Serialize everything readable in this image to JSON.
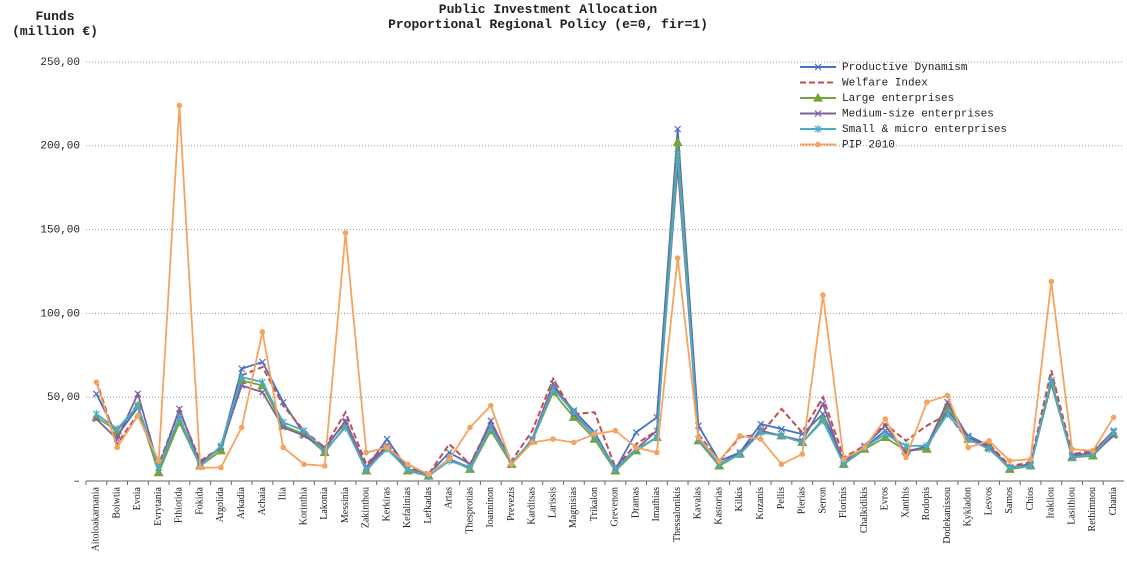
{
  "chart_data": {
    "type": "line",
    "title": "Public Investment Allocation",
    "subtitle": "Proportional Regional Policy (e=0, fir=1)",
    "ylabel": [
      "Funds",
      "(million €)"
    ],
    "categories": [
      "Aitoloakarnania",
      "Boiwtia",
      "Evoia",
      "Evrytania",
      "Fthiotida",
      "Fokida",
      "Argolida",
      "Arkadia",
      "Achaia",
      "Ilia",
      "Korinthia",
      "Lakonia",
      "Messinia",
      "Zakinthou",
      "Kerkiras",
      "Kefalinias",
      "Lefkadas",
      "Artas",
      "Thesprotias",
      "Ioanninon",
      "Prevezis",
      "Karditsas",
      "Larissis",
      "Magnisias",
      "Trikalon",
      "Grevenon",
      "Dramas",
      "Imathias",
      "Thessalonikis",
      "Kavalas",
      "Kastorias",
      "Kilkis",
      "Kozanis",
      "Pellis",
      "Pierias",
      "Serron",
      "Florinis",
      "Chalkidikis",
      "Evros",
      "Xanthis",
      "Rodopis",
      "Dodekanissou",
      "Kykladon",
      "Lesvos",
      "Samos",
      "Chios",
      "Irakliou",
      "Lasithiou",
      "Rethimnou",
      "Chania"
    ],
    "series": [
      {
        "name": "Productive Dynamism",
        "color": "#4472c4",
        "marker": "x",
        "dashed": false,
        "values": [
          52,
          27,
          44,
          5,
          37,
          11,
          20,
          67,
          71,
          47,
          28,
          20,
          35,
          8,
          25,
          7,
          4,
          17,
          10,
          33,
          11,
          24,
          56,
          42,
          29,
          7,
          29,
          38,
          210,
          33,
          12,
          17,
          34,
          31,
          28,
          40,
          12,
          20,
          30,
          18,
          20,
          42,
          27,
          21,
          8,
          10,
          60,
          15,
          17,
          30
        ]
      },
      {
        "name": "Welfare Index",
        "color": "#c0504d",
        "marker": "none",
        "dashed": true,
        "values": [
          60,
          22,
          40,
          10,
          42,
          12,
          20,
          63,
          68,
          45,
          30,
          20,
          41,
          10,
          22,
          8,
          4,
          22,
          10,
          35,
          12,
          30,
          61,
          40,
          41,
          8,
          22,
          30,
          200,
          28,
          12,
          26,
          28,
          43,
          29,
          50,
          14,
          21,
          34,
          24,
          33,
          40,
          24,
          22,
          9,
          11,
          66,
          16,
          18,
          29
        ]
      },
      {
        "name": "Large enterprises",
        "color": "#76a33c",
        "marker": "triangle",
        "dashed": false,
        "values": [
          38,
          30,
          45,
          5,
          35,
          9,
          18,
          60,
          57,
          33,
          28,
          17,
          33,
          6,
          20,
          6,
          3,
          13,
          7,
          30,
          10,
          24,
          53,
          38,
          25,
          6,
          18,
          26,
          202,
          24,
          9,
          16,
          30,
          27,
          23,
          37,
          10,
          19,
          26,
          18,
          19,
          45,
          25,
          20,
          7,
          9,
          58,
          14,
          15,
          28
        ]
      },
      {
        "name": "Medium-size enterprises",
        "color": "#7f5fa0",
        "marker": "x",
        "dashed": false,
        "values": [
          37,
          25,
          52,
          8,
          43,
          10,
          20,
          57,
          53,
          32,
          27,
          19,
          36,
          8,
          21,
          7,
          4,
          13,
          8,
          36,
          10,
          25,
          58,
          40,
          27,
          8,
          19,
          30,
          188,
          25,
          10,
          17,
          30,
          27,
          24,
          46,
          10,
          21,
          33,
          17,
          21,
          47,
          26,
          20,
          8,
          10,
          59,
          15,
          16,
          27
        ]
      },
      {
        "name": "Small & micro enterprises",
        "color": "#4bacc6",
        "marker": "star",
        "dashed": false,
        "values": [
          40,
          31,
          45,
          8,
          38,
          9,
          21,
          62,
          59,
          35,
          30,
          18,
          32,
          7,
          19,
          7,
          3,
          12,
          8,
          32,
          11,
          24,
          55,
          41,
          27,
          7,
          19,
          26,
          195,
          25,
          10,
          16,
          29,
          27,
          23,
          36,
          10,
          20,
          28,
          21,
          21,
          40,
          25,
          19,
          8,
          9,
          60,
          14,
          16,
          29
        ]
      },
      {
        "name": "PIP 2010",
        "color": "#f4a460",
        "marker": "circle",
        "dashed": false,
        "values": [
          59,
          20,
          39,
          12,
          224,
          8,
          8,
          32,
          89,
          20,
          10,
          9,
          148,
          17,
          20,
          10,
          4,
          13,
          32,
          45,
          10,
          23,
          25,
          23,
          28,
          30,
          20,
          17,
          133,
          26,
          12,
          27,
          25,
          10,
          16,
          111,
          13,
          20,
          37,
          14,
          47,
          51,
          20,
          24,
          12,
          13,
          119,
          19,
          18,
          38
        ]
      }
    ],
    "ylim": [
      0,
      250
    ],
    "yticks": [
      {
        "value": 0,
        "label": "–"
      },
      {
        "value": 50,
        "label": "50,00"
      },
      {
        "value": 100,
        "label": "100,00"
      },
      {
        "value": 150,
        "label": "150,00"
      },
      {
        "value": 200,
        "label": "200,00"
      },
      {
        "value": 250,
        "label": "250,00"
      }
    ],
    "grid": true,
    "legend": "top-right"
  }
}
